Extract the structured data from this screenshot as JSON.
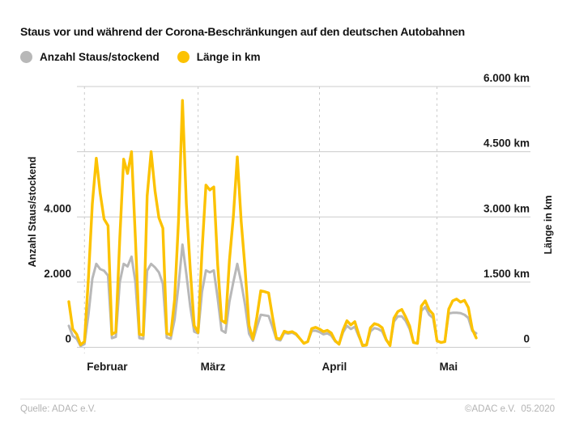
{
  "title": "Staus vor und während der Corona-Beschränkungen auf den deutschen Autobahnen",
  "legend": {
    "items": [
      {
        "label": "Anzahl Staus/stockend",
        "color": "#b8b8b8"
      },
      {
        "label": "Länge in km",
        "color": "#fcc200"
      }
    ]
  },
  "footer": {
    "source": "Quelle: ADAC e.V.",
    "copyright": "©ADAC e.V.  05.2020"
  },
  "colors": {
    "grid": "#cccccc",
    "month_line": "#cbcbcb",
    "tick_text": "#1a1a1a",
    "axis_label_text": "#1a1a1a"
  },
  "chart_data": {
    "type": "line",
    "title": "Staus vor und während der Corona-Beschränkungen auf den deutschen Autobahnen",
    "grid": true,
    "legend_position": "top-left",
    "x_unit": "Tag",
    "x_tick_labels": [
      "Februar",
      "März",
      "April",
      "Mai"
    ],
    "x_tick_day_index": [
      4,
      33,
      64,
      94
    ],
    "y_left": {
      "label": "Anzahl Staus/stockend",
      "tick_labels": [
        "0",
        "2.000",
        "4.000"
      ],
      "tick_values": [
        0,
        2000,
        4000
      ],
      "max": 8000
    },
    "y_right": {
      "label": "Länge in km",
      "tick_labels": [
        "0",
        "1.500 km",
        "3.000 km",
        "4.500 km",
        "6.000 km"
      ],
      "tick_values": [
        0,
        1500,
        3000,
        4500,
        6000
      ],
      "max": 6000
    },
    "series": [
      {
        "name": "Anzahl Staus/stockend",
        "axis": "left",
        "color": "#b8b8b8",
        "values": [
          660,
          350,
          260,
          40,
          100,
          1000,
          2100,
          2560,
          2400,
          2350,
          2200,
          280,
          320,
          2000,
          2560,
          2480,
          2780,
          2000,
          280,
          260,
          2350,
          2560,
          2450,
          2300,
          1950,
          300,
          260,
          850,
          1900,
          3150,
          2250,
          1250,
          480,
          430,
          1700,
          2360,
          2300,
          2360,
          1500,
          520,
          450,
          1400,
          2000,
          2560,
          2000,
          1300,
          420,
          200,
          620,
          1000,
          980,
          960,
          620,
          240,
          210,
          450,
          420,
          450,
          390,
          260,
          130,
          170,
          500,
          510,
          470,
          400,
          430,
          360,
          180,
          100,
          460,
          660,
          560,
          630,
          340,
          70,
          80,
          490,
          590,
          560,
          490,
          220,
          70,
          790,
          950,
          950,
          810,
          560,
          150,
          130,
          1120,
          1240,
          1000,
          900,
          190,
          150,
          170,
          1040,
          1060,
          1060,
          1050,
          1000,
          900,
          500,
          430
        ]
      },
      {
        "name": "Länge in km",
        "axis": "right",
        "color": "#fcc200",
        "values": [
          1050,
          420,
          300,
          60,
          130,
          1600,
          3300,
          4350,
          3550,
          2950,
          2800,
          300,
          350,
          2500,
          4330,
          4000,
          4500,
          2500,
          300,
          280,
          3480,
          4500,
          3600,
          2980,
          2740,
          320,
          280,
          1100,
          2900,
          5680,
          3300,
          1800,
          500,
          340,
          2200,
          3730,
          3620,
          3690,
          1900,
          620,
          560,
          2000,
          3000,
          4380,
          2900,
          1810,
          500,
          190,
          700,
          1300,
          1280,
          1250,
          700,
          210,
          190,
          370,
          340,
          360,
          310,
          200,
          90,
          130,
          430,
          460,
          420,
          360,
          390,
          330,
          150,
          70,
          400,
          610,
          515,
          590,
          300,
          40,
          50,
          450,
          545,
          515,
          450,
          180,
          40,
          670,
          825,
          870,
          700,
          490,
          110,
          90,
          950,
          1070,
          860,
          760,
          150,
          110,
          130,
          880,
          1070,
          1110,
          1040,
          1080,
          915,
          415,
          215
        ]
      }
    ]
  }
}
